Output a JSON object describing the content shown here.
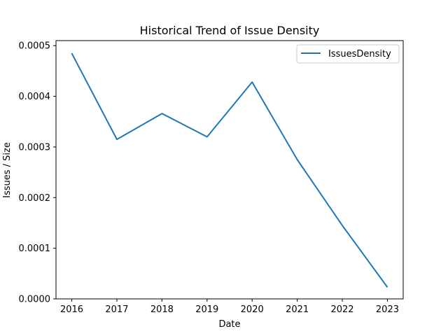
{
  "chart_data": {
    "type": "line",
    "title": "Historical Trend of Issue Density",
    "xlabel": "Date",
    "ylabel": "Issues / Size",
    "x": [
      2016,
      2017,
      2018,
      2019,
      2020,
      2021,
      2022,
      2023
    ],
    "x_tick_labels": [
      "2016",
      "2017",
      "2018",
      "2019",
      "2020",
      "2021",
      "2022",
      "2023"
    ],
    "xlim": [
      2015.65,
      2023.35
    ],
    "ylim": [
      0,
      0.00051
    ],
    "y_ticks": [
      0,
      0.0001,
      0.0002,
      0.0003,
      0.0004,
      0.0005
    ],
    "y_tick_labels": [
      "0.0000",
      "0.0001",
      "0.0002",
      "0.0003",
      "0.0004",
      "0.0005"
    ],
    "series": [
      {
        "name": "IssuesDensity",
        "color": "#1f77b4",
        "values": [
          0.000485,
          0.000315,
          0.000366,
          0.00032,
          0.000428,
          0.000275,
          0.000145,
          2.3e-05
        ]
      }
    ],
    "grid": false,
    "legend": "upper right"
  }
}
